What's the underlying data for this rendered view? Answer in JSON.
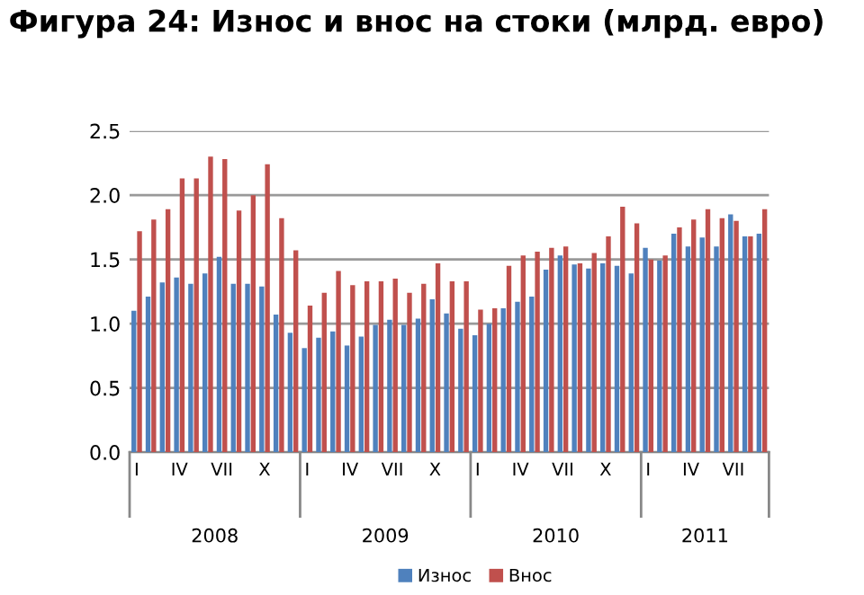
{
  "chart_data": {
    "type": "bar",
    "title": "Фигура 24: Износ и внос на стоки (млрд. евро)",
    "categories": [
      "I",
      null,
      null,
      "IV",
      null,
      null,
      "VII",
      null,
      null,
      "X",
      null,
      null,
      "I",
      null,
      null,
      "IV",
      null,
      null,
      "VII",
      null,
      null,
      "X",
      null,
      null,
      "I",
      null,
      null,
      "IV",
      null,
      null,
      "VII",
      null,
      null,
      "X",
      null,
      null,
      "I",
      null,
      null,
      "IV",
      null,
      null,
      "VII",
      null,
      null
    ],
    "series": [
      {
        "name": "Износ",
        "color": "#4f81bd",
        "values": [
          1.1,
          1.21,
          1.32,
          1.36,
          1.31,
          1.39,
          1.52,
          1.31,
          1.31,
          1.29,
          1.07,
          0.93,
          0.81,
          0.89,
          0.94,
          0.83,
          0.9,
          0.99,
          1.03,
          0.99,
          1.04,
          1.19,
          1.08,
          0.96,
          0.91,
          1.0,
          1.12,
          1.17,
          1.21,
          1.42,
          1.53,
          1.46,
          1.43,
          1.47,
          1.45,
          1.39,
          1.59,
          1.49,
          1.7,
          1.6,
          1.67,
          1.6,
          1.85,
          1.68,
          1.7
        ]
      },
      {
        "name": "Внос",
        "color": "#c0504d",
        "values": [
          1.72,
          1.81,
          1.89,
          2.13,
          2.13,
          2.3,
          2.28,
          1.88,
          2.0,
          2.24,
          1.82,
          1.57,
          1.14,
          1.24,
          1.41,
          1.3,
          1.33,
          1.33,
          1.35,
          1.24,
          1.31,
          1.47,
          1.33,
          1.33,
          1.11,
          1.12,
          1.45,
          1.53,
          1.56,
          1.59,
          1.6,
          1.47,
          1.55,
          1.68,
          1.91,
          1.78,
          1.5,
          1.53,
          1.75,
          1.81,
          1.89,
          1.82,
          1.8,
          1.68,
          1.89
        ]
      }
    ],
    "annotations": [
      "2008",
      "2009",
      "2010",
      "2011"
    ],
    "ylim": [
      0,
      2.5
    ],
    "yticks": [
      {
        "value": 0,
        "label": "0.0"
      },
      {
        "value": 0.5,
        "label": "0.5"
      },
      {
        "value": 1,
        "label": "1.0"
      },
      {
        "value": 1.5,
        "label": "1.5"
      },
      {
        "value": 2,
        "label": "2.0"
      },
      {
        "value": 2.5,
        "label": "2.5"
      }
    ],
    "grid": "y",
    "legend": "bottom"
  }
}
